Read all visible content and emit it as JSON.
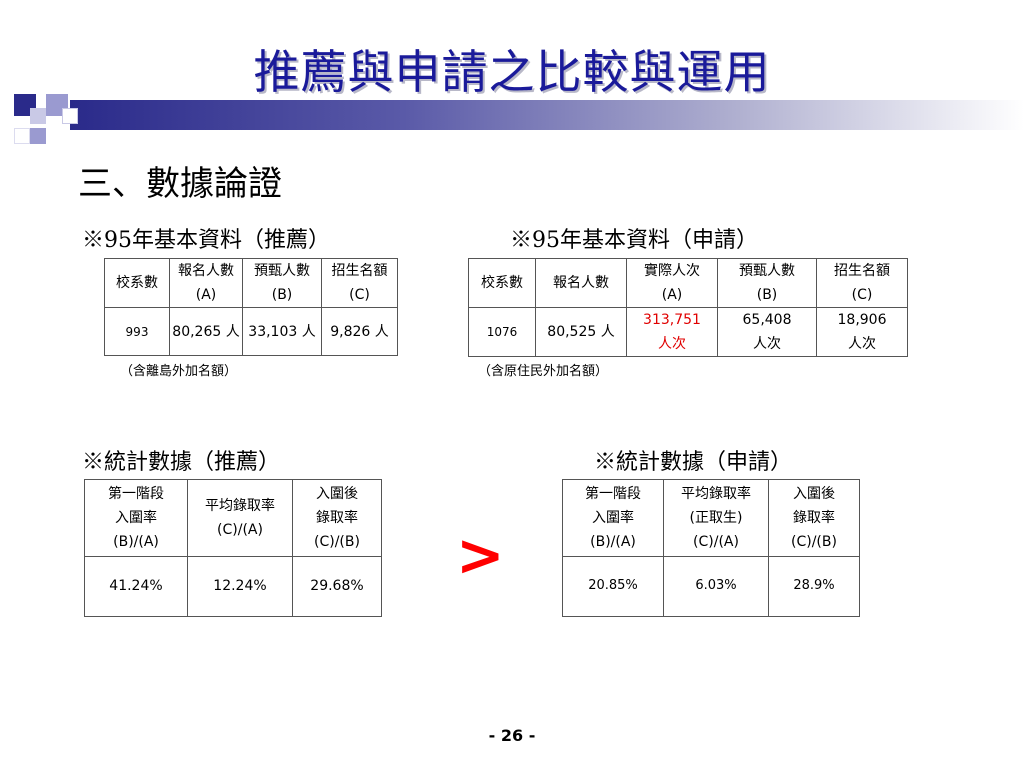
{
  "title": "推薦與申請之比較與運用",
  "subtitle": "三、數據論證",
  "rec_basic": {
    "label": "※95年基本資料（推薦）",
    "headers": [
      "校系數",
      "報名人數",
      "(A)",
      "預甄人數",
      "(B)",
      "招生名額",
      "(C)"
    ],
    "values": [
      "993",
      "80,265 人",
      "33,103 人",
      "9,826 人"
    ],
    "note": "（含離島外加名額）"
  },
  "app_basic": {
    "label": "※95年基本資料（申請）",
    "headers": [
      "校系數",
      "報名人數",
      "實際人次",
      "(A)",
      "預甄人數",
      "(B)",
      "招生名額",
      "(C)"
    ],
    "values": [
      "1076",
      "80,525 人",
      "313,751",
      "人次",
      "65,408",
      "人次",
      "18,906",
      "人次"
    ],
    "note": "（含原住民外加名額）"
  },
  "rec_stats": {
    "label": "※統計數據（推薦）",
    "headers": [
      "第一階段",
      "入圍率",
      "(B)/(A)",
      "平均錄取率",
      "(C)/(A)",
      "入圍後",
      "錄取率",
      "(C)/(B)"
    ],
    "values": [
      "41.24%",
      "12.24%",
      "29.68%"
    ]
  },
  "app_stats": {
    "label": "※統計數據（申請）",
    "headers": [
      "第一階段",
      "入圍率",
      "(B)/(A)",
      "平均錄取率",
      "(正取生)",
      "(C)/(A)",
      "入圍後",
      "錄取率",
      "(C)/(B)"
    ],
    "values": [
      "20.85%",
      "6.03%",
      "28.9%"
    ]
  },
  "comparison_symbol": ">",
  "page_number": "- 26 -",
  "colors": {
    "title": "#1a1a9a",
    "highlight": "#e00000",
    "symbol": "#ff0000"
  }
}
